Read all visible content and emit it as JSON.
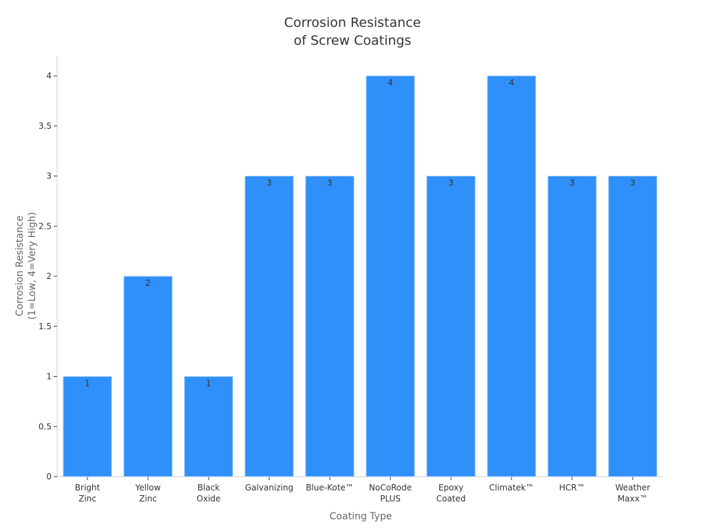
{
  "chart_data": {
    "type": "bar",
    "title": "Corrosion Resistance\nof Screw Coatings",
    "x_label": "Coating Type",
    "y_label": "Corrosion Resistance\n(1=Low, 4=Very High)",
    "categories": [
      "Bright\nZinc",
      "Yellow\nZinc",
      "Black\nOxide",
      "Galvanizing",
      "Blue-Kote™",
      "NoCoRode\nPLUS",
      "Epoxy\nCoated",
      "Climatek™",
      "HCR™",
      "Weather\nMaxx™"
    ],
    "values": [
      1,
      2,
      1,
      3,
      3,
      4,
      3,
      4,
      3,
      3
    ],
    "color": "#2e90f8",
    "ylim": [
      0,
      4.2
    ],
    "yticks": [
      0,
      0.5,
      1,
      1.5,
      2,
      2.5,
      3,
      3.5,
      4
    ],
    "grid": false
  }
}
